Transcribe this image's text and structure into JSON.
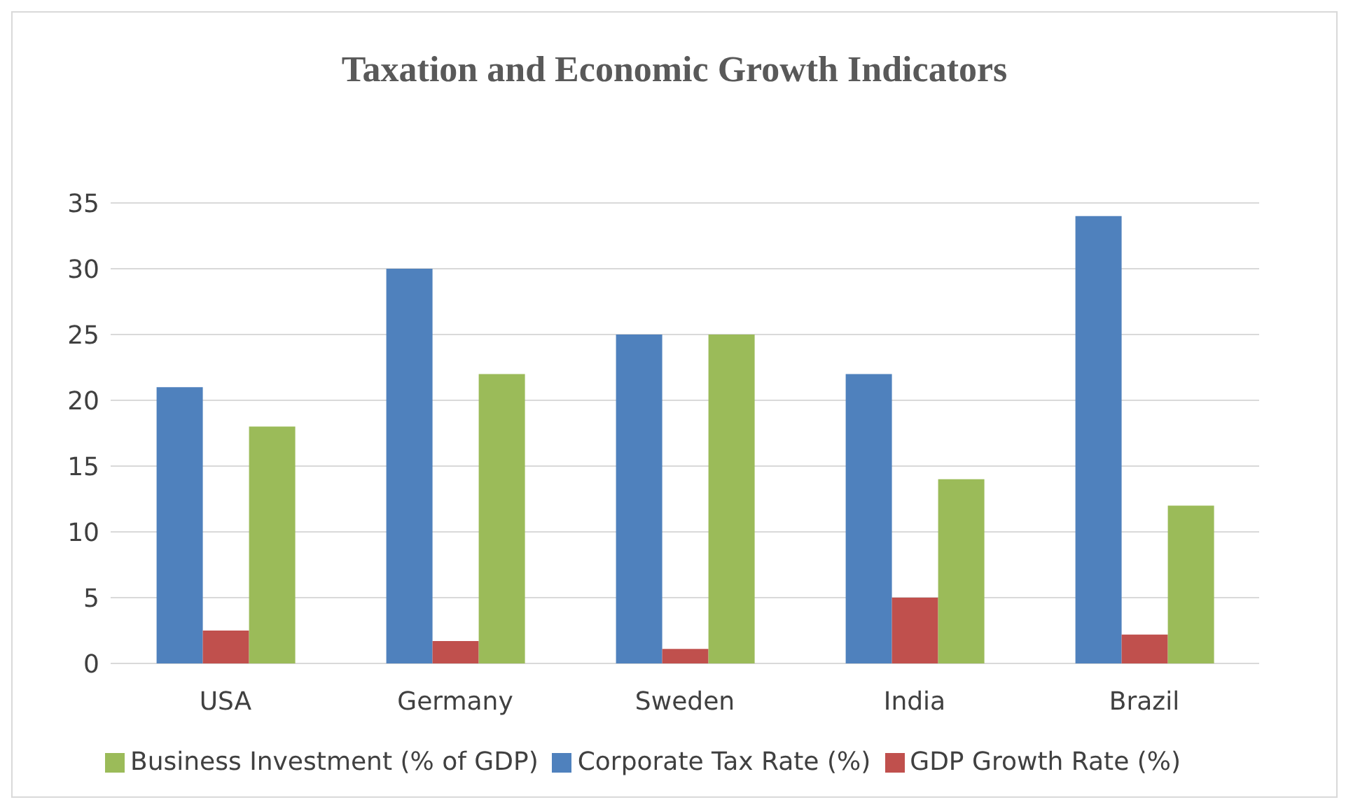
{
  "chart_data": {
    "type": "bar",
    "title": "Taxation and Economic Growth Indicators",
    "categories": [
      "USA",
      "Germany",
      "Sweden",
      "India",
      "Brazil"
    ],
    "series": [
      {
        "name": "Corporate Tax Rate (%)",
        "color": "#4f81bd",
        "values": [
          21,
          30,
          25,
          22,
          34
        ]
      },
      {
        "name": "GDP Growth Rate (%)",
        "color": "#c0504d",
        "values": [
          2.5,
          1.7,
          1.1,
          5,
          2.2
        ]
      },
      {
        "name": "Business Investment (% of GDP)",
        "color": "#9bbb59",
        "values": [
          18,
          22,
          25,
          14,
          12
        ]
      }
    ],
    "ylim": [
      0,
      35
    ],
    "yticks": [
      0,
      5,
      10,
      15,
      20,
      25,
      30,
      35
    ],
    "grid": "y",
    "legend": "bottom"
  }
}
